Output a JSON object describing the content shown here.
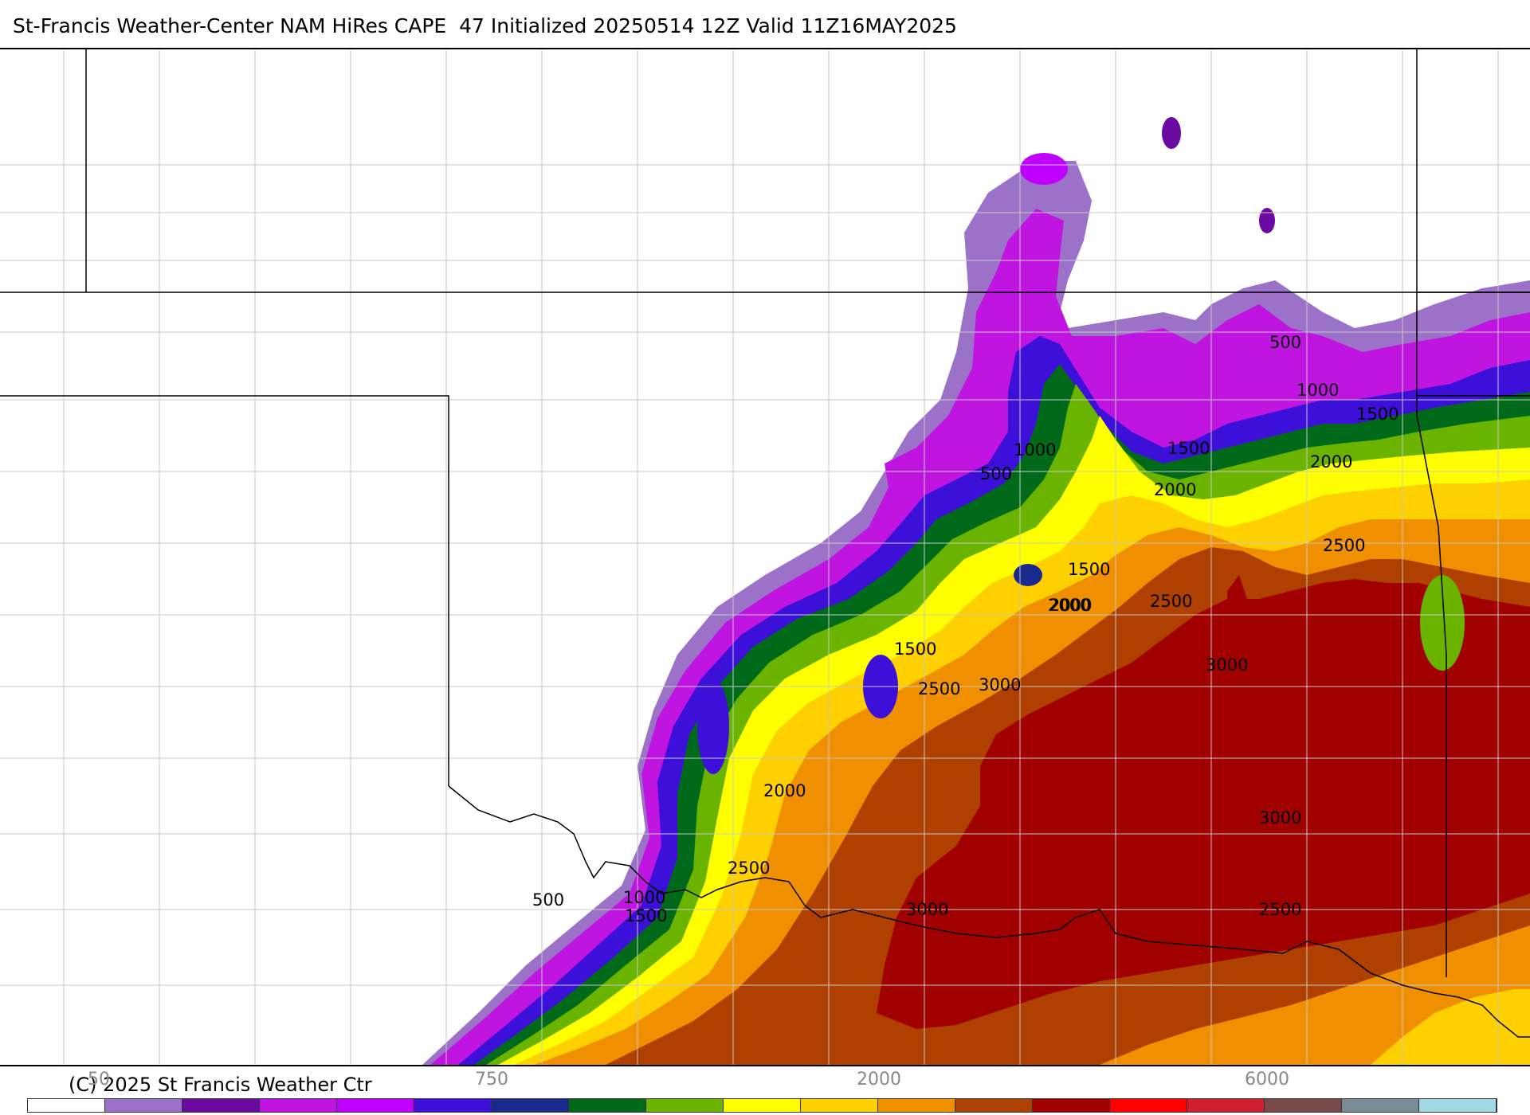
{
  "header": {
    "title": "St-Francis Weather-Center NAM HiRes CAPE  47 Initialized 20250514 12Z Valid 11Z16MAY2025"
  },
  "footer": {
    "copyright": "(C) 2025 St Francis Weather Ctr"
  },
  "colorbar": {
    "tick_labels": [
      "50",
      "750",
      "2000",
      "6000"
    ],
    "colors": [
      "#ffffff",
      "#9b72c8",
      "#6a0aa0",
      "#c014e0",
      "#c000ff",
      "#3c10d8",
      "#1a2a8c",
      "#006a1a",
      "#6ab400",
      "#ffff00",
      "#ffd000",
      "#f09000",
      "#b04000",
      "#a00000",
      "#ff0000",
      "#d02030",
      "#7a4a4a",
      "#7a8c96",
      "#a0d8e6"
    ]
  },
  "contour_labels": [
    "500",
    "1000",
    "1500",
    "2000",
    "2500",
    "3000"
  ],
  "map_labels": [
    {
      "text": "500"
    },
    {
      "text": "1000"
    },
    {
      "text": "1500"
    },
    {
      "text": "2000"
    },
    {
      "text": "1000"
    },
    {
      "text": "500"
    },
    {
      "text": "1500"
    },
    {
      "text": "2000"
    },
    {
      "text": "2000"
    },
    {
      "text": "2500"
    },
    {
      "text": "1500"
    },
    {
      "text": "2000"
    },
    {
      "text": "2500"
    },
    {
      "text": "1500"
    },
    {
      "text": "2500"
    },
    {
      "text": "3000"
    },
    {
      "text": "3000"
    },
    {
      "text": "2000"
    },
    {
      "text": "2500"
    },
    {
      "text": "3000"
    },
    {
      "text": "500"
    },
    {
      "text": "1000"
    },
    {
      "text": "1500"
    },
    {
      "text": "3000"
    },
    {
      "text": "2500"
    }
  ]
}
